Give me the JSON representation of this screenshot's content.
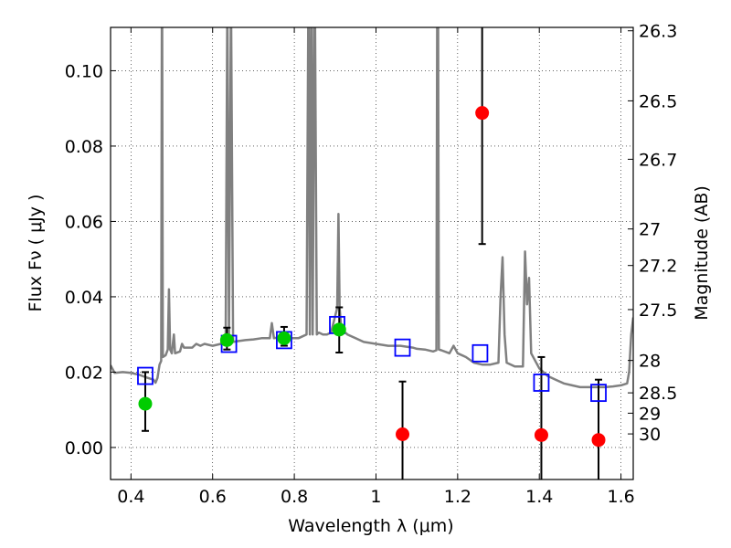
{
  "chart_data": {
    "type": "scatter",
    "xlabel": "Wavelength  λ (μm)",
    "ylabel": "Flux  Fν  ( μJy )",
    "y2label": "Magnitude (AB)",
    "xlim": [
      0.35,
      1.63
    ],
    "ylim": [
      -0.0085,
      0.1115
    ],
    "grid": true,
    "x_ticks": [
      0.4,
      0.6,
      0.8,
      1.0,
      1.2,
      1.4,
      1.6
    ],
    "x_tick_labels": [
      "0.4",
      "0.6",
      "0.8",
      "1",
      "1.2",
      "1.4",
      "1.6"
    ],
    "y_ticks": [
      0.0,
      0.02,
      0.04,
      0.06,
      0.08,
      0.1
    ],
    "y_tick_labels": [
      "0.00",
      "0.02",
      "0.04",
      "0.06",
      "0.08",
      "0.10"
    ],
    "y2_ticks": [
      {
        "label": "26.3",
        "flux": 0.1106
      },
      {
        "label": "26.5",
        "flux": 0.092
      },
      {
        "label": "26.7",
        "flux": 0.0765
      },
      {
        "label": "27",
        "flux": 0.058
      },
      {
        "label": "27.2",
        "flux": 0.0483
      },
      {
        "label": "27.5",
        "flux": 0.0366
      },
      {
        "label": "28",
        "flux": 0.0231
      },
      {
        "label": "28.5",
        "flux": 0.0145
      },
      {
        "label": "29",
        "flux": 0.0091
      },
      {
        "label": "30",
        "flux": 0.0036
      }
    ],
    "model_spectrum": {
      "color": "#808080",
      "points": [
        [
          0.35,
          0.0218
        ],
        [
          0.36,
          0.0198
        ],
        [
          0.38,
          0.02
        ],
        [
          0.4,
          0.0198
        ],
        [
          0.42,
          0.0193
        ],
        [
          0.44,
          0.0185
        ],
        [
          0.455,
          0.018
        ],
        [
          0.46,
          0.0172
        ],
        [
          0.465,
          0.0185
        ],
        [
          0.47,
          0.022
        ],
        [
          0.474,
          0.023
        ],
        [
          0.476,
          0.135
        ],
        [
          0.478,
          0.024
        ],
        [
          0.485,
          0.0245
        ],
        [
          0.49,
          0.026
        ],
        [
          0.493,
          0.042
        ],
        [
          0.496,
          0.026
        ],
        [
          0.5,
          0.025
        ],
        [
          0.505,
          0.03
        ],
        [
          0.508,
          0.025
        ],
        [
          0.52,
          0.0255
        ],
        [
          0.525,
          0.0275
        ],
        [
          0.53,
          0.0265
        ],
        [
          0.55,
          0.0265
        ],
        [
          0.56,
          0.0275
        ],
        [
          0.57,
          0.027
        ],
        [
          0.58,
          0.0275
        ],
        [
          0.6,
          0.027
        ],
        [
          0.62,
          0.0275
        ],
        [
          0.632,
          0.03
        ],
        [
          0.636,
          0.12
        ],
        [
          0.64,
          0.03
        ],
        [
          0.645,
          0.12
        ],
        [
          0.65,
          0.028
        ],
        [
          0.66,
          0.0282
        ],
        [
          0.68,
          0.0285
        ],
        [
          0.7,
          0.0287
        ],
        [
          0.72,
          0.029
        ],
        [
          0.74,
          0.029
        ],
        [
          0.745,
          0.033
        ],
        [
          0.75,
          0.029
        ],
        [
          0.76,
          0.0292
        ],
        [
          0.78,
          0.0292
        ],
        [
          0.79,
          0.029
        ],
        [
          0.8,
          0.029
        ],
        [
          0.81,
          0.029
        ],
        [
          0.82,
          0.0295
        ],
        [
          0.83,
          0.03
        ],
        [
          0.835,
          0.13
        ],
        [
          0.838,
          0.03
        ],
        [
          0.842,
          0.13
        ],
        [
          0.845,
          0.03
        ],
        [
          0.85,
          0.13
        ],
        [
          0.855,
          0.03
        ],
        [
          0.86,
          0.0305
        ],
        [
          0.87,
          0.03
        ],
        [
          0.88,
          0.03
        ],
        [
          0.89,
          0.0305
        ],
        [
          0.905,
          0.037
        ],
        [
          0.908,
          0.062
        ],
        [
          0.911,
          0.037
        ],
        [
          0.915,
          0.0315
        ],
        [
          0.93,
          0.03
        ],
        [
          0.95,
          0.029
        ],
        [
          0.97,
          0.028
        ],
        [
          1.0,
          0.0275
        ],
        [
          1.03,
          0.027
        ],
        [
          1.06,
          0.027
        ],
        [
          1.09,
          0.0265
        ],
        [
          1.1,
          0.0262
        ],
        [
          1.12,
          0.026
        ],
        [
          1.14,
          0.0255
        ],
        [
          1.148,
          0.0258
        ],
        [
          1.15,
          0.12
        ],
        [
          1.152,
          0.12
        ],
        [
          1.154,
          0.026
        ],
        [
          1.16,
          0.0258
        ],
        [
          1.18,
          0.025
        ],
        [
          1.19,
          0.027
        ],
        [
          1.2,
          0.025
        ],
        [
          1.22,
          0.024
        ],
        [
          1.24,
          0.0225
        ],
        [
          1.26,
          0.022
        ],
        [
          1.28,
          0.022
        ],
        [
          1.3,
          0.0225
        ],
        [
          1.305,
          0.04
        ],
        [
          1.31,
          0.0505
        ],
        [
          1.315,
          0.03
        ],
        [
          1.32,
          0.0225
        ],
        [
          1.34,
          0.0215
        ],
        [
          1.36,
          0.0215
        ],
        [
          1.365,
          0.052
        ],
        [
          1.37,
          0.038
        ],
        [
          1.375,
          0.045
        ],
        [
          1.38,
          0.025
        ],
        [
          1.4,
          0.021
        ],
        [
          1.42,
          0.019
        ],
        [
          1.44,
          0.018
        ],
        [
          1.46,
          0.017
        ],
        [
          1.48,
          0.0165
        ],
        [
          1.5,
          0.016
        ],
        [
          1.52,
          0.016
        ],
        [
          1.54,
          0.016
        ],
        [
          1.56,
          0.016
        ],
        [
          1.58,
          0.0162
        ],
        [
          1.6,
          0.0165
        ],
        [
          1.615,
          0.017
        ],
        [
          1.62,
          0.02
        ],
        [
          1.625,
          0.03
        ],
        [
          1.63,
          0.0345
        ]
      ]
    },
    "model_photometry": {
      "color": "#0000ff",
      "points": [
        [
          0.435,
          0.019
        ],
        [
          0.64,
          0.0275
        ],
        [
          0.775,
          0.0285
        ],
        [
          0.905,
          0.0325
        ],
        [
          1.065,
          0.0265
        ],
        [
          1.255,
          0.025
        ],
        [
          1.405,
          0.0172
        ],
        [
          1.545,
          0.0145
        ]
      ]
    },
    "detections": {
      "color": "#00cc00",
      "points": [
        {
          "x": 0.435,
          "y": 0.0116,
          "err_lo": 0.0044,
          "err_hi": 0.02
        },
        {
          "x": 0.635,
          "y": 0.0285,
          "err_lo": 0.026,
          "err_hi": 0.0318
        },
        {
          "x": 0.775,
          "y": 0.029,
          "err_lo": 0.027,
          "err_hi": 0.032
        },
        {
          "x": 0.91,
          "y": 0.0313,
          "err_lo": 0.0252,
          "err_hi": 0.0372
        }
      ]
    },
    "non_detections": {
      "color": "#ff0000",
      "points": [
        {
          "x": 1.065,
          "y": 0.0035,
          "err_lo": -0.0085,
          "err_hi": 0.0175
        },
        {
          "x": 1.26,
          "y": 0.0888,
          "err_lo": 0.054,
          "err_hi": 0.1115
        },
        {
          "x": 1.405,
          "y": 0.0033,
          "err_lo": -0.0085,
          "err_hi": 0.024
        },
        {
          "x": 1.545,
          "y": 0.002,
          "err_lo": -0.0085,
          "err_hi": 0.018
        }
      ]
    }
  }
}
